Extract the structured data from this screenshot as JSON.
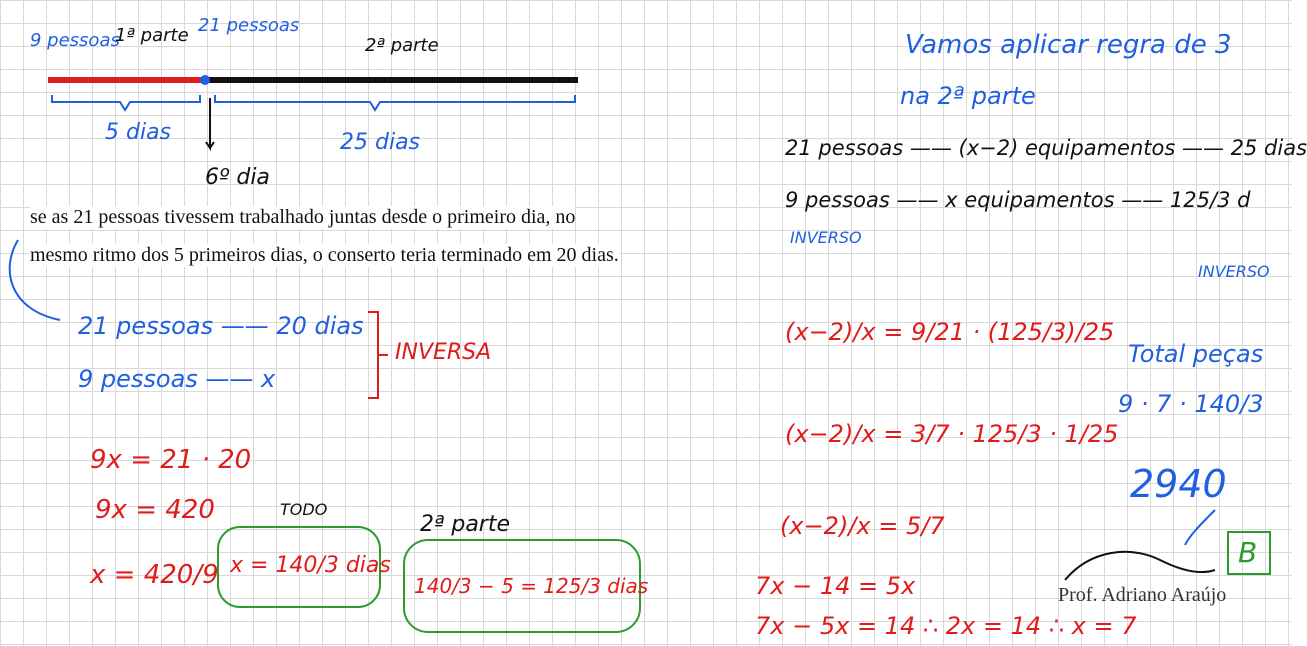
{
  "timeline": {
    "start_people": "9 pessoas",
    "part1": "1ª parte",
    "mid_people": "21 pessoas",
    "part2": "2ª parte",
    "days1": "5 dias",
    "days2": "25 dias",
    "day6": "6º dia"
  },
  "statement": [
    "se as 21 pessoas tivessem trabalhado juntas desde o primeiro dia, no",
    "mesmo ritmo dos 5 primeiros dias, o conserto teria terminado em 20 dias."
  ],
  "left_rule": {
    "row1": "21 pessoas —— 20 dias",
    "row2": "9 pessoas —— x",
    "relation": "INVERSA"
  },
  "left_work": {
    "lines": [
      "9x = 21 · 20",
      "9x = 420",
      "x = 420/9"
    ],
    "todo_label": "TODO",
    "todo_box": "x = 140/3 dias",
    "part2_label": "2ª parte",
    "part2_box": "140/3 − 5 = 125/3 dias"
  },
  "right_header": [
    "Vamos aplicar regra de 3",
    "na 2ª parte"
  ],
  "right_rule": {
    "row1": "21 pessoas —— (x−2) equipamentos —— 25 dias",
    "row2": "9 pessoas —— x equipamentos —— 125/3 d",
    "inverse1": "INVERSO",
    "inverse2": "INVERSO"
  },
  "right_work": [
    "(x−2)/x = 9/21 · (125/3)/25",
    "(x−2)/x = 3/7 · 125/3 · 1/25",
    "(x−2)/x = 5/7",
    "7x − 14 = 5x",
    "7x − 5x = 14 ∴ 2x = 14 ∴ x = 7"
  ],
  "total": {
    "title": "Total peças",
    "expr": "9 · 7 · 140/3",
    "result": "2940"
  },
  "answer": "B",
  "signature": "Prof. Adriano Araújo"
}
